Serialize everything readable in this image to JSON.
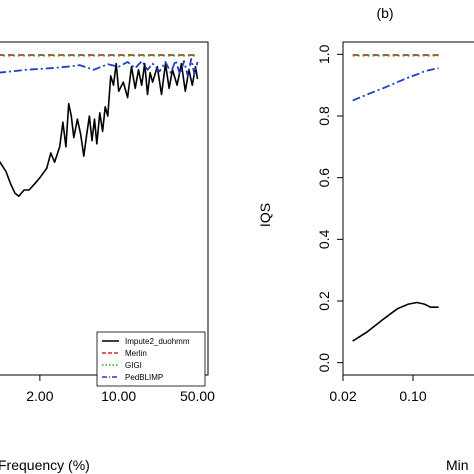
{
  "chart_data": [
    {
      "type": "line",
      "panel_label": "",
      "xlabel": "Frequency (%)",
      "ylabel": "",
      "x_scale": "log",
      "xlim": [
        0.85,
        62
      ],
      "ylim": [
        -0.04,
        1.04
      ],
      "x_ticks": [
        2.0,
        10.0,
        50.0
      ],
      "x_tick_labels": [
        "2.00",
        "10.00",
        "50.00"
      ],
      "grid": false,
      "legend": {
        "position": "bottom-right",
        "entries": [
          "Impute2_duohmm",
          "Merlin",
          "GIGI",
          "PedBLIMP"
        ]
      },
      "series": [
        {
          "name": "Impute2_duohmm",
          "color": "#000000",
          "linestyle": "solid",
          "x": [
            0.85,
            1.0,
            1.1,
            1.2,
            1.3,
            1.45,
            1.6,
            1.8,
            2.0,
            2.3,
            2.5,
            2.7,
            3.0,
            3.2,
            3.4,
            3.6,
            3.8,
            4.0,
            4.3,
            4.6,
            4.9,
            5.2,
            5.5,
            5.8,
            6.1,
            6.4,
            6.8,
            7.2,
            7.6,
            8.0,
            8.5,
            9.0,
            9.5,
            10.0,
            11.0,
            12.0,
            13.0,
            14.0,
            15.0,
            16.0,
            17.0,
            18.0,
            19.0,
            20.0,
            22.0,
            24.0,
            26.0,
            28.0,
            30.0,
            33.0,
            36.0,
            39.0,
            42.0,
            45.0,
            48.0,
            50.0
          ],
          "y": [
            0.66,
            0.62,
            0.58,
            0.55,
            0.54,
            0.56,
            0.56,
            0.58,
            0.6,
            0.63,
            0.68,
            0.65,
            0.7,
            0.78,
            0.7,
            0.84,
            0.8,
            0.73,
            0.79,
            0.74,
            0.67,
            0.74,
            0.8,
            0.72,
            0.79,
            0.71,
            0.81,
            0.75,
            0.83,
            0.8,
            0.93,
            0.9,
            0.97,
            0.88,
            0.91,
            0.86,
            0.96,
            0.89,
            0.95,
            0.9,
            0.97,
            0.87,
            0.94,
            0.91,
            0.96,
            0.87,
            0.97,
            0.89,
            0.95,
            0.9,
            0.97,
            0.88,
            0.95,
            0.9,
            0.96,
            0.92
          ]
        },
        {
          "name": "Merlin",
          "color": "#d62728",
          "linestyle": "dashed",
          "x": [
            0.85,
            50.0
          ],
          "y": [
            0.998,
            0.998
          ]
        },
        {
          "name": "GIGI",
          "color": "#22aa22",
          "linestyle": "dotted",
          "x": [
            0.85,
            50.0
          ],
          "y": [
            0.996,
            0.996
          ]
        },
        {
          "name": "PedBLIMP",
          "color": "#1f3fbf",
          "linestyle": "dotdash",
          "x": [
            0.85,
            1.5,
            2.5,
            3.5,
            4.5,
            6.0,
            8.0,
            10.0,
            12.0,
            14.0,
            16.0,
            18.0,
            20.0,
            23.0,
            26.0,
            29.0,
            32.0,
            35.0,
            38.0,
            41.0,
            44.0,
            47.0,
            50.0
          ],
          "y": [
            0.94,
            0.95,
            0.955,
            0.96,
            0.965,
            0.95,
            0.968,
            0.96,
            0.975,
            0.955,
            0.978,
            0.95,
            0.97,
            0.945,
            0.975,
            0.94,
            0.98,
            0.935,
            0.978,
            0.93,
            0.985,
            0.935,
            0.975
          ]
        }
      ]
    },
    {
      "type": "line",
      "panel_label": "(b)",
      "xlabel": "Min",
      "ylabel": "IQS",
      "x_scale": "log",
      "xlim": [
        0.02,
        0.5
      ],
      "ylim": [
        -0.04,
        1.04
      ],
      "x_ticks": [
        0.02,
        0.1
      ],
      "x_tick_labels": [
        "0.02",
        "0.10"
      ],
      "y_ticks": [
        0.0,
        0.2,
        0.4,
        0.6,
        0.8,
        1.0
      ],
      "y_tick_labels": [
        "0.0",
        "0.2",
        "0.4",
        "0.6",
        "0.8",
        "1.0"
      ],
      "grid": false,
      "series": [
        {
          "name": "Impute2_duohmm",
          "color": "#000000",
          "linestyle": "solid",
          "x": [
            0.025,
            0.035,
            0.05,
            0.07,
            0.09,
            0.11,
            0.13,
            0.15,
            0.18
          ],
          "y": [
            0.07,
            0.1,
            0.14,
            0.175,
            0.19,
            0.195,
            0.19,
            0.18,
            0.18
          ]
        },
        {
          "name": "Merlin",
          "color": "#d62728",
          "linestyle": "dashed",
          "x": [
            0.025,
            0.18
          ],
          "y": [
            0.998,
            0.998
          ]
        },
        {
          "name": "GIGI",
          "color": "#22aa22",
          "linestyle": "dotted",
          "x": [
            0.025,
            0.18
          ],
          "y": [
            0.996,
            0.996
          ]
        },
        {
          "name": "PedBLIMP",
          "color": "#1f3fbf",
          "linestyle": "dotdash",
          "x": [
            0.025,
            0.035,
            0.05,
            0.07,
            0.09,
            0.11,
            0.13,
            0.15,
            0.18
          ],
          "y": [
            0.85,
            0.87,
            0.89,
            0.91,
            0.925,
            0.935,
            0.945,
            0.95,
            0.955
          ]
        }
      ]
    }
  ]
}
